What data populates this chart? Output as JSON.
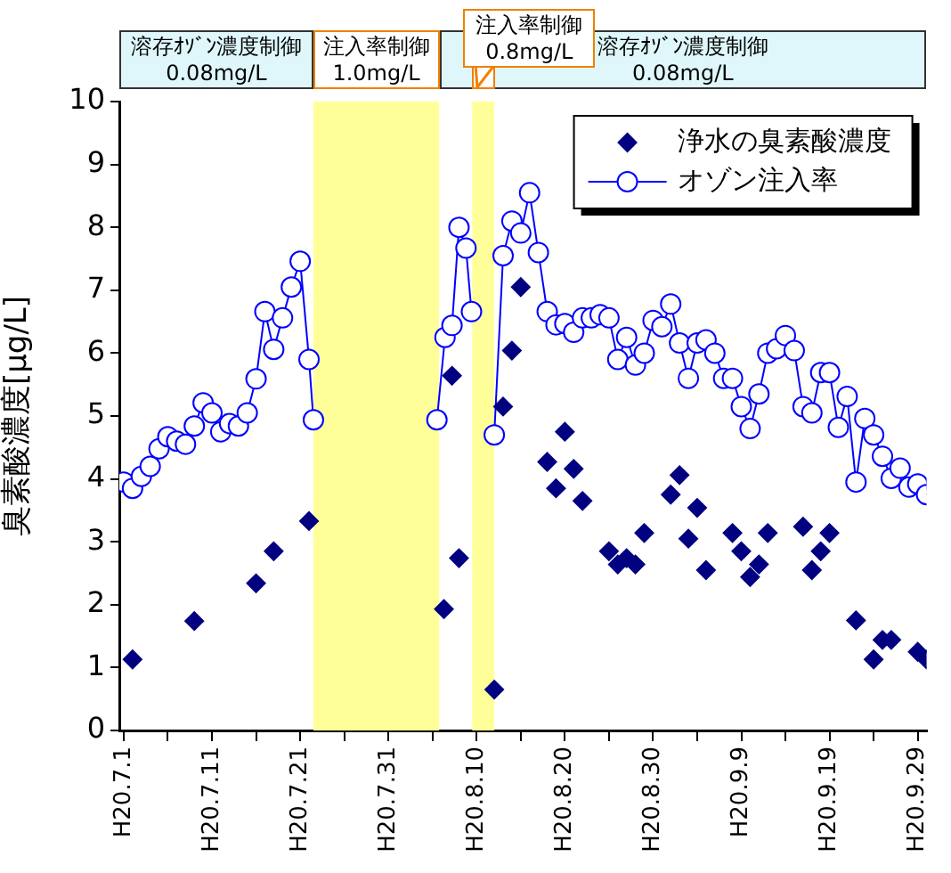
{
  "chart_data": {
    "type": "scatter",
    "ylabel": "臭素酸濃度[μg/L]",
    "legend": "top right",
    "grid": false,
    "xlim": [
      "--06-30T12:00",
      "--09-30"
    ],
    "xticks": [
      {
        "value": "--07-01",
        "label": "H20.7.1"
      },
      {
        "value": "--07-06",
        "label": null
      },
      {
        "value": "--07-11",
        "label": "H20.7.11"
      },
      {
        "value": "--07-16",
        "label": null
      },
      {
        "value": "--07-21",
        "label": "H20.7.21"
      },
      {
        "value": "--07-26",
        "label": null
      },
      {
        "value": "--07-31",
        "label": "H20.7.31"
      },
      {
        "value": "--08-05",
        "label": null
      },
      {
        "value": "--08-10",
        "label": "H20.8.10"
      },
      {
        "value": "--08-15",
        "label": null
      },
      {
        "value": "--08-20",
        "label": "H20.8.20"
      },
      {
        "value": "--08-25",
        "label": null
      },
      {
        "value": "--08-30",
        "label": "H20.8.30"
      },
      {
        "value": "--09-04",
        "label": null
      },
      {
        "value": "--09-09",
        "label": "H20.9.9"
      },
      {
        "value": "--09-14",
        "label": null
      },
      {
        "value": "--09-19",
        "label": "H20.9.19"
      },
      {
        "value": "--09-24",
        "label": null
      },
      {
        "value": "--09-29",
        "label": "H20.9.29"
      }
    ],
    "ylim": [
      0,
      10
    ],
    "yticks": [
      0,
      1,
      2,
      3,
      4,
      5,
      6,
      7,
      8,
      9,
      10
    ],
    "annotations": [
      "溶存ｵｿﾞﾝ濃度制御\n0.08mg/L",
      "溶存ｵｿﾞﾝ濃度制御\n0.08mg/L"
    ],
    "bands": [
      {
        "axis": "x",
        "from": "--07-22T12:00",
        "to": "--08-05T18:00",
        "label": "注入率制御\n1.0mg/L",
        "color": "#ffff99"
      },
      {
        "axis": "x",
        "from": "--08-09T12:00",
        "to": "--08-12",
        "label": "注入率制御\n0.8mg/L",
        "color": "#ffff99"
      }
    ],
    "series": [
      {
        "name": "浄水の臭素酸濃度",
        "marker": "diamond",
        "color": "#000080",
        "x": [
          "--07-02",
          "--07-09",
          "--07-16",
          "--07-18",
          "--07-22",
          "--08-06T07:00",
          "--08-07T05:00",
          "--08-08",
          "--08-12",
          "--08-13",
          "--08-14",
          "--08-15",
          "--08-18",
          "--08-19",
          "--08-20",
          "--08-21",
          "--08-22",
          "--08-25",
          "--08-26",
          "--08-27",
          "--08-28",
          "--08-29",
          "--09-01",
          "--09-02",
          "--09-03",
          "--09-04",
          "--09-05",
          "--09-08",
          "--09-09",
          "--09-10",
          "--09-11",
          "--09-12",
          "--09-16",
          "--09-17",
          "--09-18",
          "--09-19",
          "--09-22",
          "--09-24",
          "--09-25",
          "--09-26",
          "--09-29",
          "--09-30"
        ],
        "values": [
          1.13,
          1.74,
          2.34,
          2.85,
          3.33,
          1.93,
          5.64,
          2.74,
          0.65,
          5.15,
          6.04,
          7.05,
          4.27,
          3.85,
          4.75,
          4.16,
          3.65,
          2.85,
          2.64,
          2.74,
          2.64,
          3.14,
          3.75,
          4.06,
          3.05,
          3.54,
          2.55,
          3.14,
          2.85,
          2.44,
          2.64,
          3.14,
          3.24,
          2.55,
          2.85,
          3.14,
          1.75,
          1.13,
          1.44,
          1.44,
          1.25,
          1.13
        ]
      },
      {
        "name": "オゾン注入率",
        "type": "line",
        "marker": "circle",
        "line_style": "solid",
        "color": "#0000ff",
        "x": [
          "--07-01",
          "--07-02",
          "--07-03",
          "--07-04",
          "--07-05",
          "--07-06",
          "--07-07",
          "--07-08",
          "--07-09",
          "--07-10",
          "--07-11",
          "--07-12",
          "--07-13",
          "--07-14",
          "--07-15",
          "--07-16",
          "--07-17",
          "--07-18",
          "--07-19",
          "--07-20",
          "--07-21",
          "--07-22",
          "--07-22T12:00",
          "--07-31",
          "--08-05T12:00",
          "--08-06T10:00",
          "--08-07T05:00",
          "--08-08",
          "--08-08T19:00",
          "--08-09T10:00",
          "--08-11",
          "--08-12",
          "--08-13",
          "--08-14",
          "--08-15",
          "--08-16",
          "--08-17",
          "--08-18",
          "--08-19",
          "--08-20",
          "--08-21",
          "--08-22",
          "--08-23",
          "--08-24",
          "--08-25",
          "--08-26",
          "--08-27",
          "--08-28",
          "--08-29",
          "--08-30",
          "--08-31",
          "--09-01",
          "--09-02",
          "--09-03",
          "--09-04",
          "--09-05",
          "--09-06",
          "--09-07",
          "--09-08",
          "--09-09",
          "--09-10",
          "--09-11",
          "--09-12",
          "--09-13",
          "--09-14",
          "--09-15",
          "--09-16",
          "--09-17",
          "--09-18",
          "--09-19",
          "--09-20",
          "--09-21",
          "--09-22",
          "--09-23",
          "--09-24",
          "--09-25",
          "--09-26",
          "--09-27",
          "--09-28",
          "--09-29",
          "--09-30"
        ],
        "values": [
          3.95,
          3.85,
          4.04,
          4.2,
          4.48,
          4.67,
          4.6,
          4.55,
          4.84,
          5.21,
          5.05,
          4.75,
          4.88,
          4.84,
          5.05,
          5.59,
          6.66,
          6.06,
          6.56,
          7.05,
          7.46,
          5.9,
          4.94,
          null,
          4.94,
          6.25,
          6.44,
          8.0,
          7.67,
          6.66,
          null,
          4.7,
          7.55,
          8.1,
          7.91,
          8.55,
          7.6,
          6.66,
          6.45,
          6.47,
          6.33,
          6.56,
          6.56,
          6.61,
          6.56,
          5.9,
          6.25,
          5.81,
          6.0,
          6.52,
          6.42,
          6.78,
          6.16,
          5.6,
          6.16,
          6.21,
          6.0,
          5.6,
          5.6,
          5.15,
          4.8,
          5.35,
          6.0,
          6.07,
          6.28,
          6.04,
          5.15,
          5.05,
          5.69,
          5.69,
          4.82,
          5.31,
          3.95,
          4.96,
          4.7,
          4.36,
          4.01,
          4.17,
          3.87,
          3.92,
          3.75
        ]
      }
    ]
  }
}
